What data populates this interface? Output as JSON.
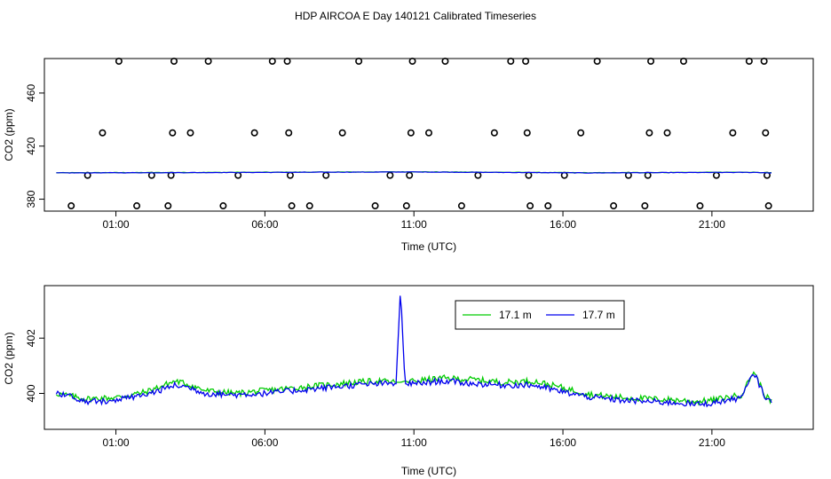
{
  "page_title": "HDP AIRCOA E  Day 140121  Calibrated Timeseries",
  "chart_data": [
    {
      "type": "scatter",
      "title": "",
      "xlabel": "Time (UTC)",
      "ylabel": "CO2 (ppm)",
      "xlim": [
        -1.4,
        24.4
      ],
      "ylim": [
        371,
        486
      ],
      "xticks": [
        {
          "value": 1,
          "label": "01:00"
        },
        {
          "value": 6,
          "label": "06:00"
        },
        {
          "value": 11,
          "label": "11:00"
        },
        {
          "value": 16,
          "label": "16:00"
        },
        {
          "value": 21,
          "label": "21:00"
        }
      ],
      "yticks": [
        {
          "value": 380,
          "label": "380"
        },
        {
          "value": 420,
          "label": "420"
        },
        {
          "value": 460,
          "label": "460"
        }
      ],
      "grid": false,
      "calibration_points": [
        [
          -0.5,
          375
        ],
        [
          0.05,
          398
        ],
        [
          0.55,
          430
        ],
        [
          1.1,
          484
        ],
        [
          1.7,
          375
        ],
        [
          2.2,
          398
        ],
        [
          2.75,
          375
        ],
        [
          2.85,
          398
        ],
        [
          2.9,
          430
        ],
        [
          2.95,
          484
        ],
        [
          3.5,
          430
        ],
        [
          4.1,
          484
        ],
        [
          4.6,
          375
        ],
        [
          5.1,
          398
        ],
        [
          5.65,
          430
        ],
        [
          6.25,
          484
        ],
        [
          6.75,
          484
        ],
        [
          6.8,
          430
        ],
        [
          6.85,
          398
        ],
        [
          6.9,
          375
        ],
        [
          7.5,
          375
        ],
        [
          8.05,
          398
        ],
        [
          8.6,
          430
        ],
        [
          9.15,
          484
        ],
        [
          9.7,
          375
        ],
        [
          10.2,
          398
        ],
        [
          10.75,
          375
        ],
        [
          10.85,
          398
        ],
        [
          10.9,
          430
        ],
        [
          10.95,
          484
        ],
        [
          11.5,
          430
        ],
        [
          12.05,
          484
        ],
        [
          12.6,
          375
        ],
        [
          13.15,
          398
        ],
        [
          13.7,
          430
        ],
        [
          14.25,
          484
        ],
        [
          14.75,
          484
        ],
        [
          14.8,
          430
        ],
        [
          14.85,
          398
        ],
        [
          14.9,
          375
        ],
        [
          15.5,
          375
        ],
        [
          16.05,
          398
        ],
        [
          16.6,
          430
        ],
        [
          17.15,
          484
        ],
        [
          17.7,
          375
        ],
        [
          18.2,
          398
        ],
        [
          18.75,
          375
        ],
        [
          18.85,
          398
        ],
        [
          18.9,
          430
        ],
        [
          18.95,
          484
        ],
        [
          19.5,
          430
        ],
        [
          20.05,
          484
        ],
        [
          20.6,
          375
        ],
        [
          21.15,
          398
        ],
        [
          21.7,
          430
        ],
        [
          22.25,
          484
        ],
        [
          22.75,
          484
        ],
        [
          22.8,
          430
        ],
        [
          22.85,
          398
        ],
        [
          22.9,
          375
        ]
      ],
      "series": [
        {
          "name": "17.1 m",
          "color": "#00cc00",
          "y": [
            399.9,
            400.1,
            400.6,
            399.9,
            400.2,
            400.3,
            399.9
          ]
        },
        {
          "name": "17.7 m",
          "color": "#0000ee",
          "y": [
            399.8,
            400.0,
            400.5,
            399.8,
            400.1,
            400.2,
            399.8
          ]
        }
      ],
      "series_x": [
        -1.0,
        3.0,
        11.0,
        17.0,
        20.5,
        22.4,
        23.0
      ]
    },
    {
      "type": "line",
      "title": "",
      "xlabel": "Time (UTC)",
      "ylabel": "CO2 (ppm)",
      "xlim": [
        -1.4,
        24.4
      ],
      "ylim": [
        398.7,
        403.9
      ],
      "xticks": [
        {
          "value": 1,
          "label": "01:00"
        },
        {
          "value": 6,
          "label": "06:00"
        },
        {
          "value": 11,
          "label": "11:00"
        },
        {
          "value": 16,
          "label": "16:00"
        },
        {
          "value": 21,
          "label": "21:00"
        }
      ],
      "yticks": [
        {
          "value": 400,
          "label": "400"
        },
        {
          "value": 402,
          "label": "402"
        }
      ],
      "grid": false,
      "legend": {
        "position": "top-center"
      },
      "x": [
        -1.0,
        0.0,
        1.0,
        2.0,
        3.0,
        3.5,
        4.0,
        5.0,
        6.0,
        7.0,
        8.0,
        9.0,
        9.8,
        10.4,
        10.55,
        10.7,
        11.0,
        12.0,
        13.0,
        14.0,
        15.0,
        16.0,
        17.0,
        18.0,
        19.0,
        20.0,
        20.5,
        21.0,
        22.0,
        22.4,
        22.8,
        23.0
      ],
      "series": [
        {
          "name": "17.1 m",
          "color": "#00cc00",
          "values": [
            400.0,
            399.8,
            399.85,
            400.05,
            400.45,
            400.3,
            400.1,
            400.0,
            400.1,
            400.2,
            400.3,
            400.4,
            400.45,
            400.4,
            400.4,
            400.45,
            400.45,
            400.55,
            400.5,
            400.4,
            400.45,
            400.2,
            399.95,
            399.85,
            399.8,
            399.75,
            399.7,
            399.75,
            399.95,
            400.8,
            399.9,
            399.7
          ]
        },
        {
          "name": "17.7 m",
          "color": "#0000ee",
          "values": [
            400.05,
            399.7,
            399.75,
            399.95,
            400.3,
            400.2,
            400.0,
            399.95,
            400.0,
            400.1,
            400.2,
            400.3,
            400.35,
            400.35,
            403.8,
            400.35,
            400.35,
            400.45,
            400.35,
            400.3,
            400.3,
            400.05,
            399.85,
            399.75,
            399.7,
            399.65,
            399.6,
            399.65,
            399.85,
            400.75,
            399.85,
            399.65
          ]
        }
      ]
    }
  ]
}
